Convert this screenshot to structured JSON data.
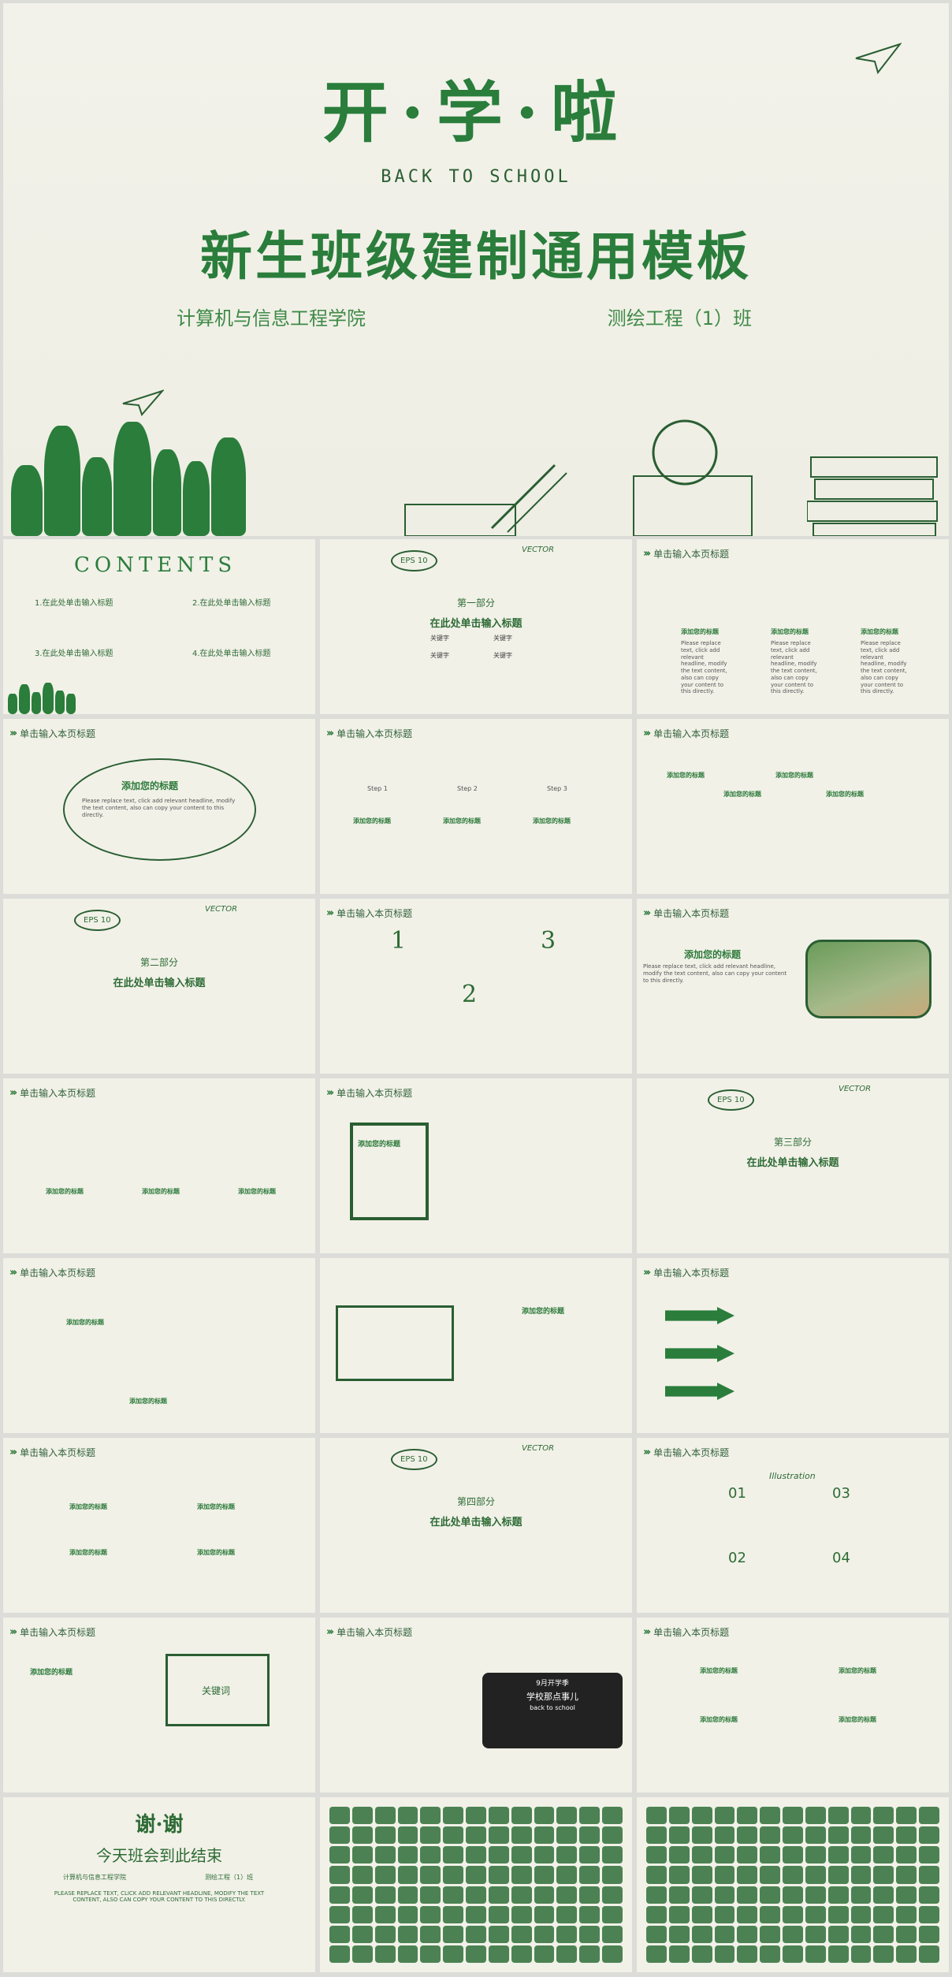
{
  "hero": {
    "title": "开·学·啦",
    "subtitle": "BACK TO SCHOOL",
    "main_title": "新生班级建制通用模板",
    "college": "计算机与信息工程学院",
    "class_name": "测绘工程（1）班"
  },
  "contents": {
    "title": "CONTENTS",
    "items": [
      "1.在此处单击输入标题",
      "2.在此处单击输入标题",
      "3.在此处单击输入标题",
      "4.在此处单击输入标题"
    ]
  },
  "common": {
    "header": "单击输入本页标题",
    "add_title": "添加您的标题",
    "click_title": "在此处单击输入标题",
    "keyword": "关键字",
    "placeholder": "Please replace text, click add relevant headline, modify the text content, also can copy your content to this directly.",
    "vector": "VECTOR",
    "eps": "EPS 10"
  },
  "sections": [
    "第一部分",
    "第二部分",
    "第三部分",
    "第四部分"
  ],
  "steps": [
    "Step 1",
    "Step 2",
    "Step 3"
  ],
  "numbers": [
    "01",
    "02",
    "03",
    "04"
  ],
  "big_numbers": [
    "1",
    "2",
    "3"
  ],
  "illustration": "Illustration",
  "keyword_box": "关键词",
  "blackboard": {
    "line1": "9月开学季",
    "line2": "学校那点事儿",
    "line3": "back to school"
  },
  "closing": {
    "thanks": "谢·谢",
    "end": "今天班会到此结束",
    "college": "计算机与信息工程学院",
    "class_name": "测绘工程（1）班",
    "note": "PLEASE REPLACE TEXT, CLICK ADD RELEVANT HEADLINE, MODIFY THE TEXT CONTENT, ALSO CAN COPY YOUR CONTENT TO THIS DIRECTLY."
  },
  "colors": {
    "primary": "#2a7d3b",
    "background": "#f1f1e8"
  }
}
